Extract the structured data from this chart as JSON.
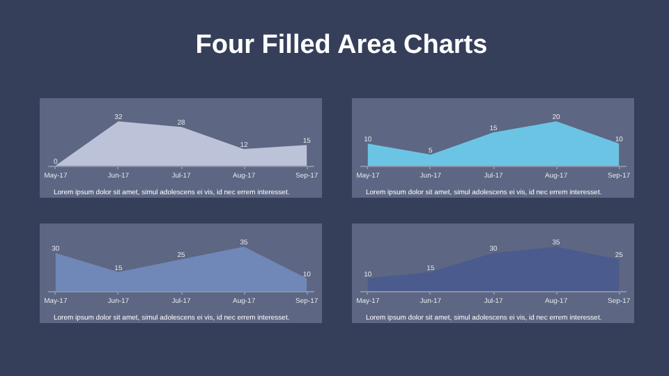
{
  "chart_data": [
    {
      "type": "other",
      "title": "Four Filled Area Charts"
    },
    {
      "type": "area",
      "categories": [
        "May-17",
        "Jun-17",
        "Jul-17",
        "Aug-17",
        "Sep-17"
      ],
      "values": [
        0,
        32,
        28,
        12,
        15
      ],
      "color": "#bcc2d8",
      "data_labels": true,
      "annotations": [
        "Lorem ipsum dolor sit amet, simul adolescens ei vis, id nec errem interesset."
      ]
    },
    {
      "type": "area",
      "categories": [
        "May-17",
        "Jun-17",
        "Jul-17",
        "Aug-17",
        "Sep-17"
      ],
      "values": [
        10,
        5,
        15,
        20,
        10
      ],
      "color": "#6cc4e4",
      "data_labels": true,
      "annotations": [
        "Lorem ipsum dolor sit amet, simul adolescens ei vis, id nec errem interesset."
      ]
    },
    {
      "type": "area",
      "categories": [
        "May-17",
        "Jun-17",
        "Jul-17",
        "Aug-17",
        "Sep-17"
      ],
      "values": [
        30,
        15,
        25,
        35,
        10
      ],
      "color": "#7088b8",
      "data_labels": true,
      "annotations": [
        "Lorem ipsum dolor sit amet, simul adolescens ei vis, id nec errem interesset."
      ]
    },
    {
      "type": "area",
      "categories": [
        "May-17",
        "Jun-17",
        "Jul-17",
        "Aug-17",
        "Sep-17"
      ],
      "values": [
        10,
        15,
        30,
        35,
        25
      ],
      "color": "#4b5b8e",
      "data_labels": true,
      "annotations": [
        "Lorem ipsum dolor sit amet, simul adolescens ei vis, id nec errem interesset."
      ]
    }
  ]
}
